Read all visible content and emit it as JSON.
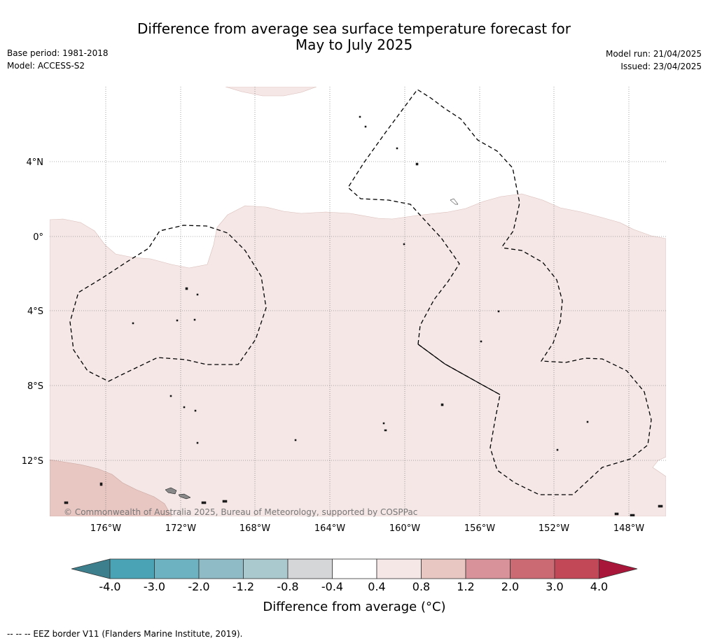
{
  "title": {
    "line1": "Difference from average sea surface temperature forecast for",
    "line2": "May to July 2025"
  },
  "meta_left": {
    "base_period": "Base period: 1981-2018",
    "model": "Model: ACCESS-S2"
  },
  "meta_right": {
    "model_run": "Model run: 21/04/2025",
    "issued": "Issued: 23/04/2025"
  },
  "map": {
    "copyright": "© Commonwealth of Australia 2025, Bureau of Meteorology, supported by COSPPac",
    "lon_labels": [
      "176°W",
      "172°W",
      "168°W",
      "164°W",
      "160°W",
      "156°W",
      "152°W",
      "148°W"
    ],
    "lat_labels": [
      "4°N",
      "0°",
      "4°S",
      "8°S",
      "12°S"
    ]
  },
  "colorbar": {
    "title": "Difference from average (°C)",
    "tick_labels": [
      "-4.0",
      "-3.0",
      "-2.0",
      "-1.2",
      "-0.8",
      "-0.4",
      "0.4",
      "0.8",
      "1.2",
      "2.0",
      "3.0",
      "4.0"
    ],
    "colors": [
      "#3d7f8c",
      "#4aa3b4",
      "#6db2c0",
      "#8fbbc6",
      "#aac9cf",
      "#d4d6d8",
      "#ffffff",
      "#f4e7e6",
      "#e8c7c2",
      "#d8939a",
      "#cc6a74",
      "#c24858",
      "#a8173a"
    ]
  },
  "footnote": "--  --  -- EEZ border V11 (Flanders Marine Institute, 2019).",
  "colors": {
    "anomaly_0_4_to_0_8": "#f4e7e6",
    "anomaly_0_8_to_1_2": "#e8c7c2",
    "eez_border": "#000000"
  }
}
